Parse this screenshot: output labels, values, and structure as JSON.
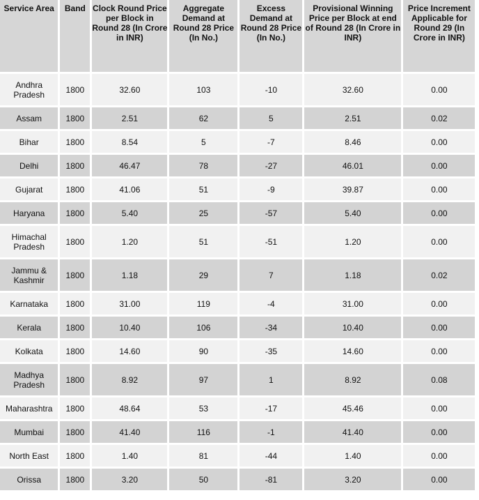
{
  "columns": [
    "Service Area",
    "Band",
    "Clock Round Price per Block in Round 28 (In Crore in INR)",
    "Aggregate Demand at Round 28 Price (In No.)",
    "Excess Demand at Round 28 Price (In No.)",
    "Provisional Winning Price per Block at end of Round 28 (In Crore in INR)",
    "Price Increment Applicable for Round 29 (In Crore in INR)"
  ],
  "rows": [
    {
      "area": "Andhra Pradesh",
      "band": "1800",
      "clock_price": "32.60",
      "aggregate_demand": "103",
      "excess_demand": "-10",
      "provisional_price": "32.60",
      "increment": "0.00"
    },
    {
      "area": "Assam",
      "band": "1800",
      "clock_price": "2.51",
      "aggregate_demand": "62",
      "excess_demand": "5",
      "provisional_price": "2.51",
      "increment": "0.02"
    },
    {
      "area": "Bihar",
      "band": "1800",
      "clock_price": "8.54",
      "aggregate_demand": "5",
      "excess_demand": "-7",
      "provisional_price": "8.46",
      "increment": "0.00"
    },
    {
      "area": "Delhi",
      "band": "1800",
      "clock_price": "46.47",
      "aggregate_demand": "78",
      "excess_demand": "-27",
      "provisional_price": "46.01",
      "increment": "0.00"
    },
    {
      "area": "Gujarat",
      "band": "1800",
      "clock_price": "41.06",
      "aggregate_demand": "51",
      "excess_demand": "-9",
      "provisional_price": "39.87",
      "increment": "0.00"
    },
    {
      "area": "Haryana",
      "band": "1800",
      "clock_price": "5.40",
      "aggregate_demand": "25",
      "excess_demand": "-57",
      "provisional_price": "5.40",
      "increment": "0.00"
    },
    {
      "area": "Himachal Pradesh",
      "band": "1800",
      "clock_price": "1.20",
      "aggregate_demand": "51",
      "excess_demand": "-51",
      "provisional_price": "1.20",
      "increment": "0.00"
    },
    {
      "area": "Jammu & Kashmir",
      "band": "1800",
      "clock_price": "1.18",
      "aggregate_demand": "29",
      "excess_demand": "7",
      "provisional_price": "1.18",
      "increment": "0.02"
    },
    {
      "area": "Karnataka",
      "band": "1800",
      "clock_price": "31.00",
      "aggregate_demand": "119",
      "excess_demand": "-4",
      "provisional_price": "31.00",
      "increment": "0.00"
    },
    {
      "area": "Kerala",
      "band": "1800",
      "clock_price": "10.40",
      "aggregate_demand": "106",
      "excess_demand": "-34",
      "provisional_price": "10.40",
      "increment": "0.00"
    },
    {
      "area": "Kolkata",
      "band": "1800",
      "clock_price": "14.60",
      "aggregate_demand": "90",
      "excess_demand": "-35",
      "provisional_price": "14.60",
      "increment": "0.00"
    },
    {
      "area": "Madhya Pradesh",
      "band": "1800",
      "clock_price": "8.92",
      "aggregate_demand": "97",
      "excess_demand": "1",
      "provisional_price": "8.92",
      "increment": "0.08"
    },
    {
      "area": "Maharashtra",
      "band": "1800",
      "clock_price": "48.64",
      "aggregate_demand": "53",
      "excess_demand": "-17",
      "provisional_price": "45.46",
      "increment": "0.00"
    },
    {
      "area": "Mumbai",
      "band": "1800",
      "clock_price": "41.40",
      "aggregate_demand": "116",
      "excess_demand": "-1",
      "provisional_price": "41.40",
      "increment": "0.00"
    },
    {
      "area": "North East",
      "band": "1800",
      "clock_price": "1.40",
      "aggregate_demand": "81",
      "excess_demand": "-44",
      "provisional_price": "1.40",
      "increment": "0.00"
    },
    {
      "area": "Orissa",
      "band": "1800",
      "clock_price": "3.20",
      "aggregate_demand": "50",
      "excess_demand": "-81",
      "provisional_price": "3.20",
      "increment": "0.00"
    }
  ]
}
